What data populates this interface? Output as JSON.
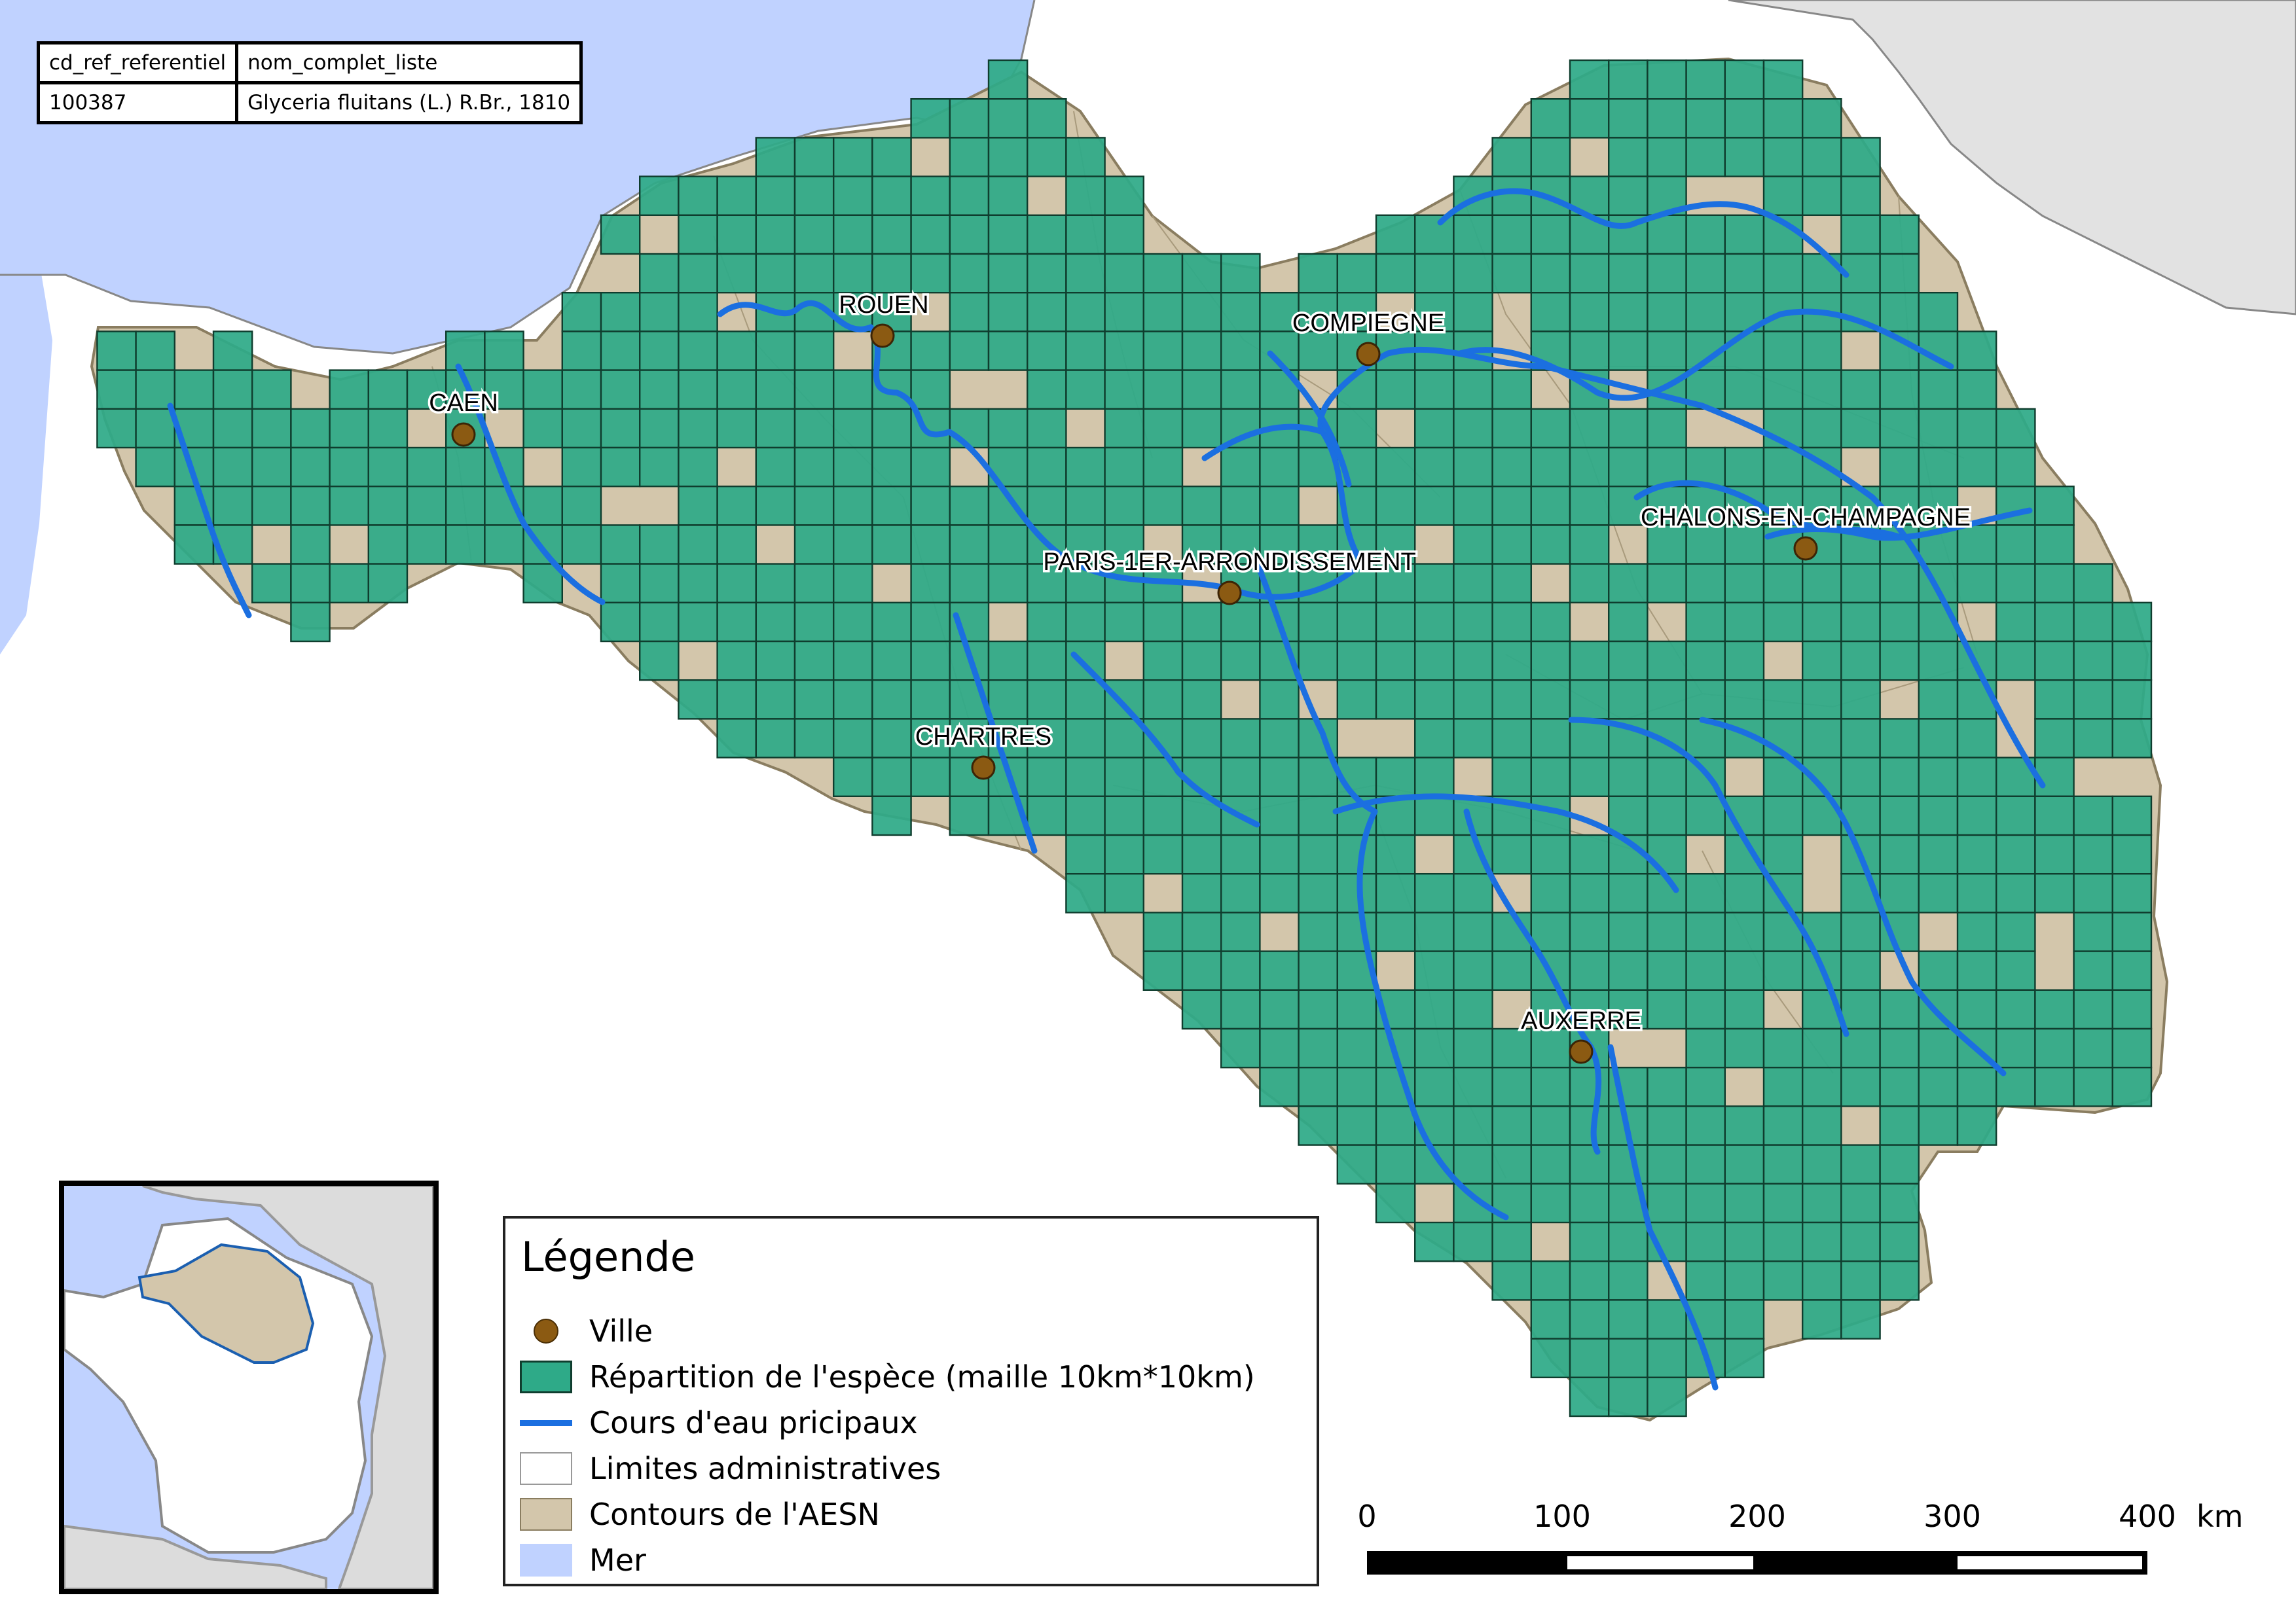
{
  "attribute_table": {
    "header": [
      "cd_ref_referentiel",
      "nom_complet_liste"
    ],
    "row": [
      "100387",
      "Glyceria fluitans (L.) R.Br., 1810"
    ]
  },
  "cities": [
    {
      "name": "ROUEN"
    },
    {
      "name": "CAEN"
    },
    {
      "name": "COMPIEGNE"
    },
    {
      "name": "PARIS-1ER-ARRONDISSEMENT"
    },
    {
      "name": "CHALONS-EN-CHAMPAGNE"
    },
    {
      "name": "CHARTRES"
    },
    {
      "name": "AUXERRE"
    }
  ],
  "legend": {
    "title": "Légende",
    "items": [
      {
        "label": "Ville",
        "symbol": "city-dot",
        "color": "#8b5a12"
      },
      {
        "label": "Répartition de l'espèce (maille 10km*10km)",
        "symbol": "grid-cell",
        "color": "#2eaa88"
      },
      {
        "label": "Cours d'eau pricipaux",
        "symbol": "river-line",
        "color": "#1b6fe0"
      },
      {
        "label": "Limites administratives",
        "symbol": "admin-box",
        "color": "#ffffff"
      },
      {
        "label": "Contours de l'AESN",
        "symbol": "basin-fill",
        "color": "#d3c6ab"
      },
      {
        "label": "Mer",
        "symbol": "sea-fill",
        "color": "#c0d2ff"
      }
    ]
  },
  "scale_bar": {
    "ticks": [
      "0",
      "100",
      "200",
      "300",
      "400"
    ],
    "unit": "km"
  },
  "colors": {
    "sea": "#c0d2ff",
    "basin": "#d3c6ab",
    "grid_cell": "#2eaa88",
    "grid_border": "#0f3d2e",
    "river": "#1b6fe0",
    "city": "#8b5a12",
    "neighbor_land": "#e2e2e2"
  }
}
